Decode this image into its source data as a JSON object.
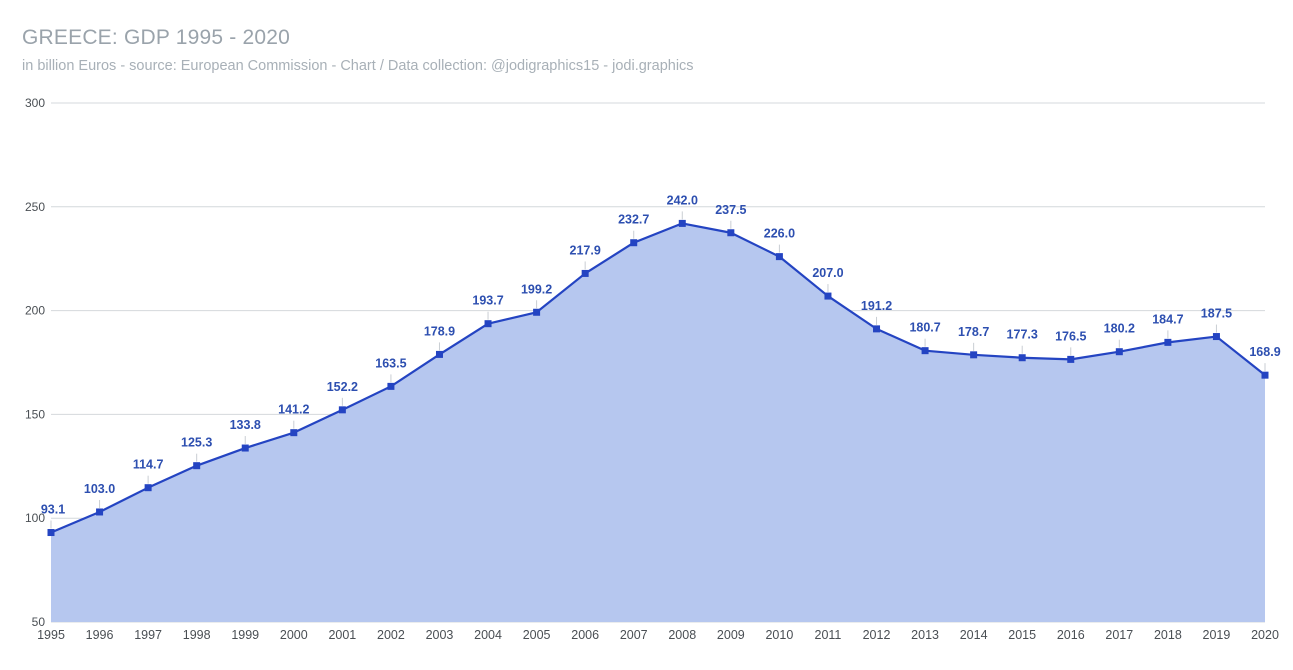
{
  "header": {
    "title": "GREECE: GDP 1995 - 2020",
    "subtitle": "in billion Euros - source: European Commission - Chart / Data collection: @jodigraphics15 - jodi.graphics"
  },
  "colors": {
    "line": "#2444c2",
    "fill": "#b6c7ef",
    "label": "#2d4fb0",
    "grid": "#d4d8dc"
  },
  "chart_data": {
    "type": "area",
    "title": "GREECE: GDP 1995 - 2020",
    "subtitle": "in billion Euros - source: European Commission - Chart / Data collection: @jodigraphics15 - jodi.graphics",
    "xlabel": "",
    "ylabel": "",
    "ylim": [
      50,
      300
    ],
    "yticks": [
      50,
      100,
      150,
      200,
      250,
      300
    ],
    "grid": true,
    "legend": "none",
    "x": [
      "1995",
      "1996",
      "1997",
      "1998",
      "1999",
      "2000",
      "2001",
      "2002",
      "2003",
      "2004",
      "2005",
      "2006",
      "2007",
      "2008",
      "2009",
      "2010",
      "2011",
      "2012",
      "2013",
      "2014",
      "2015",
      "2016",
      "2017",
      "2018",
      "2019",
      "2020"
    ],
    "series": [
      {
        "values": [
          93.1,
          103.0,
          114.7,
          125.3,
          133.8,
          141.2,
          152.2,
          163.5,
          178.9,
          193.7,
          199.2,
          217.9,
          232.7,
          242.0,
          237.5,
          226.0,
          207.0,
          191.2,
          180.7,
          178.7,
          177.3,
          176.5,
          180.2,
          184.7,
          187.5,
          168.9
        ],
        "labels": [
          "93.1",
          "103.0",
          "114.7",
          "125.3",
          "133.8",
          "141.2",
          "152.2",
          "163.5",
          "178.9",
          "193.7",
          "199.2",
          "217.9",
          "232.7",
          "242.0",
          "237.5",
          "226.0",
          "207.0",
          "191.2",
          "180.7",
          "178.7",
          "177.3",
          "176.5",
          "180.2",
          "184.7",
          "187.5",
          "168.9"
        ]
      }
    ]
  }
}
